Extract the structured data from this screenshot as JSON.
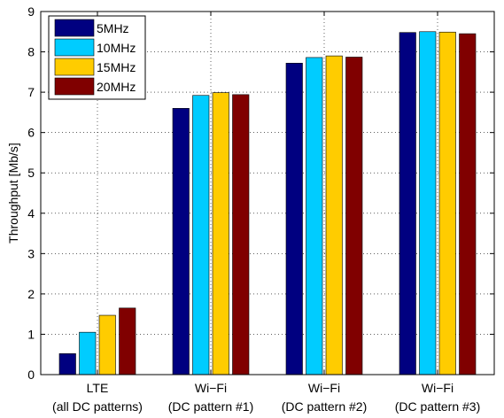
{
  "chart_data": {
    "type": "bar",
    "categories": [
      [
        "LTE",
        "(all DC patterns)"
      ],
      [
        "Wi−Fi",
        "(DC pattern #1)"
      ],
      [
        "Wi−Fi",
        "(DC pattern #2)"
      ],
      [
        "Wi−Fi",
        "(DC pattern #3)"
      ]
    ],
    "series": [
      {
        "name": "5MHz",
        "color": "#000080",
        "values": [
          0.52,
          6.6,
          7.72,
          8.48
        ]
      },
      {
        "name": "10MHz",
        "color": "#00CCFF",
        "values": [
          1.05,
          6.92,
          7.86,
          8.5
        ]
      },
      {
        "name": "15MHz",
        "color": "#FFCC00",
        "values": [
          1.47,
          6.99,
          7.9,
          8.49
        ]
      },
      {
        "name": "20MHz",
        "color": "#800000",
        "values": [
          1.65,
          6.94,
          7.87,
          8.45
        ]
      }
    ],
    "xlabel": "",
    "ylabel": "Throughput [Mb/s]",
    "ylim": [
      0,
      9
    ],
    "yticks": [
      0,
      1,
      2,
      3,
      4,
      5,
      6,
      7,
      8,
      9
    ],
    "grid": true,
    "legend_position": "top-left"
  }
}
